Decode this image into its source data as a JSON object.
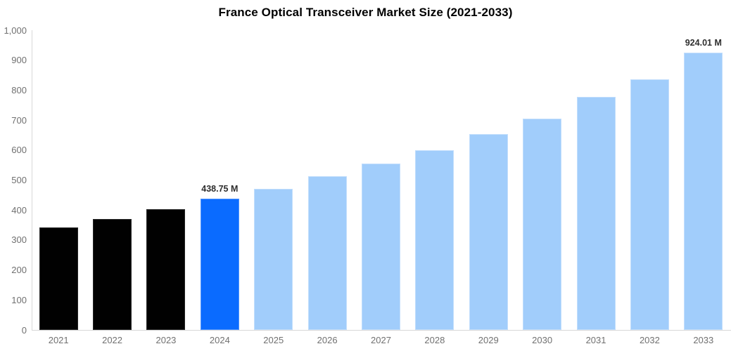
{
  "chart": {
    "title": "France Optical Transceiver Market Size (2021-2033)"
  },
  "chart_data": {
    "type": "bar",
    "title": "France Optical Transceiver Market Size (2021-2033)",
    "categories": [
      "2021",
      "2022",
      "2023",
      "2024",
      "2025",
      "2026",
      "2027",
      "2028",
      "2029",
      "2030",
      "2031",
      "2032",
      "2033"
    ],
    "values": [
      341,
      369,
      402,
      438.75,
      471,
      512,
      555,
      600,
      653,
      705,
      777,
      837,
      924.01
    ],
    "unit": "M",
    "bar_roles": [
      "historical",
      "historical",
      "historical",
      "current",
      "forecast",
      "forecast",
      "forecast",
      "forecast",
      "forecast",
      "forecast",
      "forecast",
      "forecast",
      "forecast"
    ],
    "data_labels": [
      "",
      "",
      "",
      "438.75 M",
      "",
      "",
      "",
      "",
      "",
      "",
      "",
      "",
      "924.01 M"
    ],
    "ylim": [
      0,
      1000
    ],
    "yticks": [
      {
        "value": 0,
        "label": "0"
      },
      {
        "value": 100,
        "label": "100"
      },
      {
        "value": 200,
        "label": "200"
      },
      {
        "value": 300,
        "label": "300"
      },
      {
        "value": 400,
        "label": "400"
      },
      {
        "value": 500,
        "label": "500"
      },
      {
        "value": 600,
        "label": "600"
      },
      {
        "value": 700,
        "label": "700"
      },
      {
        "value": 800,
        "label": "800"
      },
      {
        "value": 900,
        "label": "900"
      },
      {
        "value": 1000,
        "label": "1,000"
      }
    ],
    "xlabel": "",
    "ylabel": "",
    "grid": "off",
    "legend": "none",
    "colors": {
      "historical": "#010101",
      "current": "#0a6bff",
      "forecast": "#a1cdfb",
      "historical_border": "#262626",
      "current_border": "#4f93fd",
      "forecast_border": "#c2defc",
      "axis_line": "#d8d8d8",
      "tick_text": "#707070",
      "data_label_text": "#2e2e2e",
      "title_text": "#000000"
    }
  }
}
